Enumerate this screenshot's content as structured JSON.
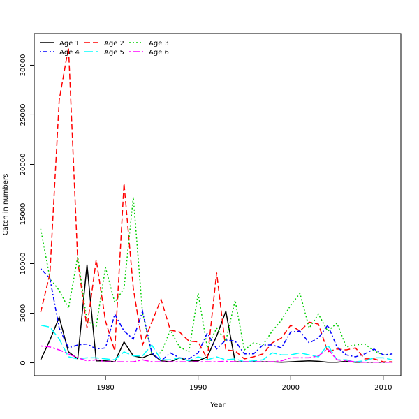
{
  "chart_data": {
    "type": "line",
    "title": "",
    "xlabel": "Year",
    "ylabel": "Catch in numbers",
    "xlim": [
      1972.3,
      2011.9
    ],
    "ylim": [
      -1300,
      33200
    ],
    "xticks": [
      1980,
      1990,
      2000,
      2010
    ],
    "yticks": [
      0,
      5000,
      10000,
      15000,
      20000,
      25000,
      30000
    ],
    "legend_position": "top-left",
    "x": [
      1973,
      1974,
      1975,
      1976,
      1977,
      1978,
      1979,
      1980,
      1981,
      1982,
      1983,
      1984,
      1985,
      1986,
      1987,
      1988,
      1989,
      1990,
      1991,
      1992,
      1993,
      1994,
      1995,
      1996,
      1997,
      1998,
      1999,
      2000,
      2001,
      2002,
      2003,
      2004,
      2005,
      2006,
      2007,
      2008,
      2009,
      2010,
      2011
    ],
    "series": [
      {
        "name": "Age 1",
        "color": "#000000",
        "dash": "solid",
        "values": [
          300,
          2300,
          4600,
          1100,
          400,
          9900,
          200,
          200,
          100,
          2100,
          700,
          500,
          900,
          200,
          100,
          500,
          200,
          200,
          600,
          2700,
          5200,
          100,
          100,
          100,
          100,
          100,
          50,
          100,
          150,
          200,
          150,
          50,
          50,
          150,
          50,
          50,
          50,
          50,
          50
        ]
      },
      {
        "name": "Age 2",
        "color": "#ff0000",
        "dash": "dashed",
        "values": [
          5100,
          9000,
          26500,
          31800,
          10300,
          3500,
          10400,
          4200,
          1200,
          18100,
          7500,
          1800,
          4100,
          6400,
          3300,
          3100,
          2200,
          2100,
          400,
          9100,
          1300,
          1200,
          400,
          600,
          900,
          2000,
          2500,
          3800,
          3200,
          4100,
          3900,
          1100,
          1400,
          1300,
          1500,
          400,
          400,
          100,
          100
        ]
      },
      {
        "name": "Age 3",
        "color": "#00cd00",
        "dash": "dotted",
        "values": [
          13500,
          8500,
          7300,
          5500,
          10700,
          4200,
          3700,
          9600,
          6100,
          7500,
          16700,
          5000,
          900,
          1000,
          3300,
          1600,
          1100,
          7000,
          1500,
          3500,
          2200,
          6300,
          1300,
          2000,
          1800,
          3200,
          4300,
          5800,
          7000,
          3500,
          4900,
          3200,
          4000,
          1600,
          1800,
          1900,
          1200,
          800,
          800
        ]
      },
      {
        "name": "Age 4",
        "color": "#0000ff",
        "dash": "dashdot",
        "values": [
          9500,
          8500,
          3500,
          1500,
          1800,
          1900,
          1400,
          1500,
          4900,
          3200,
          2400,
          5200,
          1000,
          200,
          1000,
          500,
          400,
          1000,
          3000,
          1400,
          2300,
          2200,
          900,
          900,
          1800,
          1800,
          1500,
          3100,
          3200,
          2000,
          2500,
          3800,
          1600,
          800,
          600,
          900,
          1400,
          800,
          900
        ]
      },
      {
        "name": "Age 5",
        "color": "#00ffff",
        "dash": "longdash",
        "values": [
          3800,
          3600,
          2400,
          600,
          400,
          500,
          500,
          400,
          300,
          1100,
          700,
          700,
          1800,
          300,
          300,
          500,
          200,
          600,
          300,
          600,
          300,
          400,
          100,
          200,
          300,
          1000,
          800,
          800,
          1000,
          800,
          600,
          1800,
          300,
          300,
          100,
          200,
          500,
          500,
          300
        ]
      },
      {
        "name": "Age 6",
        "color": "#ff00ff",
        "dash": "twodash",
        "values": [
          1700,
          1600,
          1300,
          900,
          500,
          200,
          300,
          100,
          100,
          100,
          100,
          300,
          100,
          100,
          100,
          100,
          100,
          100,
          100,
          100,
          150,
          100,
          100,
          100,
          100,
          100,
          200,
          500,
          500,
          500,
          700,
          1400,
          300,
          200,
          100,
          50,
          50,
          50,
          50
        ]
      }
    ]
  }
}
